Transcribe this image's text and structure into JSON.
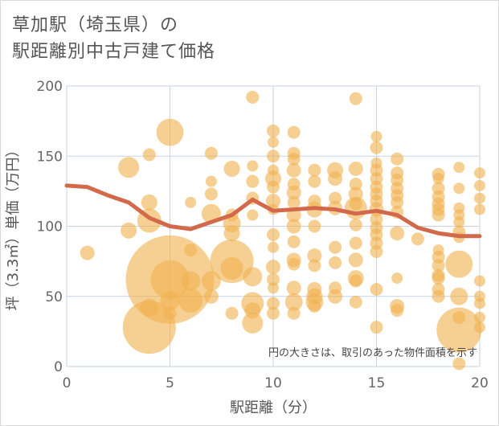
{
  "title_line1": "草加駅（埼玉県）の",
  "title_line2": "駅距離別中古戸建て価格",
  "chart_data": {
    "type": "scatter",
    "title": "草加駅（埼玉県）の駅距離別中古戸建て価格",
    "xlabel": "駅距離（分）",
    "ylabel": "坪（3.3㎡）単価（万円）",
    "xlim": [
      0,
      20
    ],
    "ylim": [
      0,
      200
    ],
    "xticks": [
      0,
      5,
      10,
      15,
      20
    ],
    "yticks": [
      0,
      50,
      100,
      150,
      200
    ],
    "grid": true,
    "note": "円の大きさは、取引のあった物件面積を示す",
    "colors": {
      "bubble": "#f0b150",
      "trend": "#d2694a",
      "grid": "#c8d3e3"
    },
    "trend_line": {
      "x": [
        0,
        1,
        2,
        3,
        4,
        5,
        6,
        7,
        8,
        9,
        10,
        11,
        12,
        13,
        14,
        15,
        16,
        17,
        18,
        19,
        20
      ],
      "y": [
        129,
        128,
        122,
        117,
        106,
        100,
        98,
        103,
        108,
        119,
        111,
        112,
        113,
        112,
        109,
        111,
        108,
        99,
        95,
        93,
        93
      ]
    },
    "points": [
      {
        "x": 1,
        "y": 81,
        "s": 9
      },
      {
        "x": 3,
        "y": 142,
        "s": 13
      },
      {
        "x": 3,
        "y": 97,
        "s": 10
      },
      {
        "x": 4,
        "y": 151,
        "s": 8
      },
      {
        "x": 4,
        "y": 117,
        "s": 10
      },
      {
        "x": 4,
        "y": 104,
        "s": 15
      },
      {
        "x": 4,
        "y": 42,
        "s": 11
      },
      {
        "x": 4,
        "y": 28,
        "s": 33
      },
      {
        "x": 5,
        "y": 167,
        "s": 17
      },
      {
        "x": 5,
        "y": 62,
        "s": 55
      },
      {
        "x": 5,
        "y": 62,
        "s": 24
      },
      {
        "x": 5,
        "y": 47,
        "s": 12
      },
      {
        "x": 5,
        "y": 38,
        "s": 8
      },
      {
        "x": 6,
        "y": 117,
        "s": 7
      },
      {
        "x": 6,
        "y": 83,
        "s": 8
      },
      {
        "x": 6,
        "y": 61,
        "s": 12
      },
      {
        "x": 6,
        "y": 47,
        "s": 15
      },
      {
        "x": 7,
        "y": 152,
        "s": 8
      },
      {
        "x": 7,
        "y": 132,
        "s": 7
      },
      {
        "x": 7,
        "y": 123,
        "s": 8
      },
      {
        "x": 7,
        "y": 109,
        "s": 12
      },
      {
        "x": 7,
        "y": 61,
        "s": 12
      },
      {
        "x": 7,
        "y": 50,
        "s": 9
      },
      {
        "x": 8,
        "y": 141,
        "s": 10
      },
      {
        "x": 8,
        "y": 108,
        "s": 8
      },
      {
        "x": 8,
        "y": 102,
        "s": 11
      },
      {
        "x": 8,
        "y": 95,
        "s": 10
      },
      {
        "x": 8,
        "y": 75,
        "s": 27
      },
      {
        "x": 8,
        "y": 70,
        "s": 14
      },
      {
        "x": 8,
        "y": 38,
        "s": 8
      },
      {
        "x": 9,
        "y": 192,
        "s": 8
      },
      {
        "x": 9,
        "y": 143,
        "s": 7
      },
      {
        "x": 9,
        "y": 132,
        "s": 8
      },
      {
        "x": 9,
        "y": 120,
        "s": 8
      },
      {
        "x": 9,
        "y": 108,
        "s": 7
      },
      {
        "x": 9,
        "y": 64,
        "s": 12
      },
      {
        "x": 9,
        "y": 45,
        "s": 14
      },
      {
        "x": 9,
        "y": 40,
        "s": 10
      },
      {
        "x": 9,
        "y": 31,
        "s": 13
      },
      {
        "x": 10,
        "y": 168,
        "s": 8
      },
      {
        "x": 10,
        "y": 160,
        "s": 7
      },
      {
        "x": 10,
        "y": 150,
        "s": 8
      },
      {
        "x": 10,
        "y": 140,
        "s": 7
      },
      {
        "x": 10,
        "y": 134,
        "s": 10
      },
      {
        "x": 10,
        "y": 128,
        "s": 8
      },
      {
        "x": 10,
        "y": 118,
        "s": 9
      },
      {
        "x": 10,
        "y": 112,
        "s": 7
      },
      {
        "x": 10,
        "y": 94,
        "s": 8
      },
      {
        "x": 10,
        "y": 85,
        "s": 7
      },
      {
        "x": 10,
        "y": 71,
        "s": 9
      },
      {
        "x": 10,
        "y": 62,
        "s": 8
      },
      {
        "x": 10,
        "y": 56,
        "s": 7
      },
      {
        "x": 10,
        "y": 45,
        "s": 8
      },
      {
        "x": 10,
        "y": 38,
        "s": 8
      },
      {
        "x": 11,
        "y": 167,
        "s": 8
      },
      {
        "x": 11,
        "y": 152,
        "s": 8
      },
      {
        "x": 11,
        "y": 148,
        "s": 8
      },
      {
        "x": 11,
        "y": 140,
        "s": 9
      },
      {
        "x": 11,
        "y": 130,
        "s": 8
      },
      {
        "x": 11,
        "y": 124,
        "s": 9
      },
      {
        "x": 11,
        "y": 117,
        "s": 8
      },
      {
        "x": 11,
        "y": 108,
        "s": 9
      },
      {
        "x": 11,
        "y": 100,
        "s": 9
      },
      {
        "x": 11,
        "y": 89,
        "s": 8
      },
      {
        "x": 11,
        "y": 76,
        "s": 9
      },
      {
        "x": 11,
        "y": 73,
        "s": 8
      },
      {
        "x": 11,
        "y": 56,
        "s": 9
      },
      {
        "x": 11,
        "y": 46,
        "s": 11
      },
      {
        "x": 11,
        "y": 38,
        "s": 8
      },
      {
        "x": 12,
        "y": 140,
        "s": 8
      },
      {
        "x": 12,
        "y": 132,
        "s": 8
      },
      {
        "x": 12,
        "y": 118,
        "s": 8
      },
      {
        "x": 12,
        "y": 112,
        "s": 10
      },
      {
        "x": 12,
        "y": 100,
        "s": 8
      },
      {
        "x": 12,
        "y": 79,
        "s": 9
      },
      {
        "x": 12,
        "y": 72,
        "s": 8
      },
      {
        "x": 12,
        "y": 55,
        "s": 9
      },
      {
        "x": 12,
        "y": 50,
        "s": 10
      },
      {
        "x": 12,
        "y": 46,
        "s": 11
      },
      {
        "x": 12,
        "y": 43,
        "s": 8
      },
      {
        "x": 13,
        "y": 140,
        "s": 10
      },
      {
        "x": 13,
        "y": 134,
        "s": 9
      },
      {
        "x": 13,
        "y": 120,
        "s": 8
      },
      {
        "x": 13,
        "y": 113,
        "s": 9
      },
      {
        "x": 13,
        "y": 85,
        "s": 8
      },
      {
        "x": 13,
        "y": 74,
        "s": 8
      },
      {
        "x": 13,
        "y": 56,
        "s": 8
      },
      {
        "x": 13,
        "y": 50,
        "s": 9
      },
      {
        "x": 14,
        "y": 191,
        "s": 8
      },
      {
        "x": 14,
        "y": 141,
        "s": 9
      },
      {
        "x": 14,
        "y": 130,
        "s": 8
      },
      {
        "x": 14,
        "y": 123,
        "s": 9
      },
      {
        "x": 14,
        "y": 116,
        "s": 8
      },
      {
        "x": 14,
        "y": 113,
        "s": 14
      },
      {
        "x": 14,
        "y": 101,
        "s": 8
      },
      {
        "x": 14,
        "y": 88,
        "s": 8
      },
      {
        "x": 14,
        "y": 76,
        "s": 9
      },
      {
        "x": 14,
        "y": 63,
        "s": 10
      },
      {
        "x": 14,
        "y": 61,
        "s": 8
      },
      {
        "x": 14,
        "y": 46,
        "s": 8
      },
      {
        "x": 15,
        "y": 164,
        "s": 7
      },
      {
        "x": 15,
        "y": 156,
        "s": 8
      },
      {
        "x": 15,
        "y": 145,
        "s": 7
      },
      {
        "x": 15,
        "y": 140,
        "s": 8
      },
      {
        "x": 15,
        "y": 134,
        "s": 8
      },
      {
        "x": 15,
        "y": 128,
        "s": 8
      },
      {
        "x": 15,
        "y": 123,
        "s": 8
      },
      {
        "x": 15,
        "y": 118,
        "s": 8
      },
      {
        "x": 15,
        "y": 112,
        "s": 9
      },
      {
        "x": 15,
        "y": 105,
        "s": 8
      },
      {
        "x": 15,
        "y": 99,
        "s": 8
      },
      {
        "x": 15,
        "y": 94,
        "s": 8
      },
      {
        "x": 15,
        "y": 88,
        "s": 8
      },
      {
        "x": 15,
        "y": 82,
        "s": 8
      },
      {
        "x": 15,
        "y": 55,
        "s": 8
      },
      {
        "x": 15,
        "y": 28,
        "s": 8
      },
      {
        "x": 16,
        "y": 148,
        "s": 8
      },
      {
        "x": 16,
        "y": 138,
        "s": 8
      },
      {
        "x": 16,
        "y": 133,
        "s": 8
      },
      {
        "x": 16,
        "y": 127,
        "s": 8
      },
      {
        "x": 16,
        "y": 122,
        "s": 8
      },
      {
        "x": 16,
        "y": 117,
        "s": 8
      },
      {
        "x": 16,
        "y": 110,
        "s": 8
      },
      {
        "x": 16,
        "y": 95,
        "s": 9
      },
      {
        "x": 16,
        "y": 63,
        "s": 7
      },
      {
        "x": 16,
        "y": 43,
        "s": 9
      },
      {
        "x": 16,
        "y": 40,
        "s": 8
      },
      {
        "x": 17,
        "y": 91,
        "s": 8
      },
      {
        "x": 18,
        "y": 137,
        "s": 8
      },
      {
        "x": 18,
        "y": 134,
        "s": 7
      },
      {
        "x": 18,
        "y": 127,
        "s": 8
      },
      {
        "x": 18,
        "y": 121,
        "s": 8
      },
      {
        "x": 18,
        "y": 116,
        "s": 8
      },
      {
        "x": 18,
        "y": 112,
        "s": 8
      },
      {
        "x": 18,
        "y": 108,
        "s": 8
      },
      {
        "x": 18,
        "y": 83,
        "s": 7
      },
      {
        "x": 18,
        "y": 78,
        "s": 8
      },
      {
        "x": 18,
        "y": 72,
        "s": 8
      },
      {
        "x": 18,
        "y": 65,
        "s": 8
      },
      {
        "x": 18,
        "y": 63,
        "s": 8
      },
      {
        "x": 18,
        "y": 55,
        "s": 8
      },
      {
        "x": 18,
        "y": 50,
        "s": 8
      },
      {
        "x": 19,
        "y": 142,
        "s": 7
      },
      {
        "x": 19,
        "y": 127,
        "s": 7
      },
      {
        "x": 19,
        "y": 113,
        "s": 7
      },
      {
        "x": 19,
        "y": 108,
        "s": 7
      },
      {
        "x": 19,
        "y": 103,
        "s": 7
      },
      {
        "x": 19,
        "y": 96,
        "s": 8
      },
      {
        "x": 19,
        "y": 92,
        "s": 7
      },
      {
        "x": 19,
        "y": 73,
        "s": 17
      },
      {
        "x": 19,
        "y": 50,
        "s": 11
      },
      {
        "x": 19,
        "y": 35,
        "s": 8
      },
      {
        "x": 19,
        "y": 26,
        "s": 28
      },
      {
        "x": 19,
        "y": 2,
        "s": 8
      },
      {
        "x": 20,
        "y": 138,
        "s": 7
      },
      {
        "x": 20,
        "y": 129,
        "s": 7
      },
      {
        "x": 20,
        "y": 120,
        "s": 7
      },
      {
        "x": 20,
        "y": 112,
        "s": 7
      },
      {
        "x": 20,
        "y": 61,
        "s": 7
      },
      {
        "x": 20,
        "y": 50,
        "s": 7
      },
      {
        "x": 20,
        "y": 45,
        "s": 7
      },
      {
        "x": 20,
        "y": 35,
        "s": 7
      },
      {
        "x": 20,
        "y": 28,
        "s": 7
      }
    ]
  }
}
